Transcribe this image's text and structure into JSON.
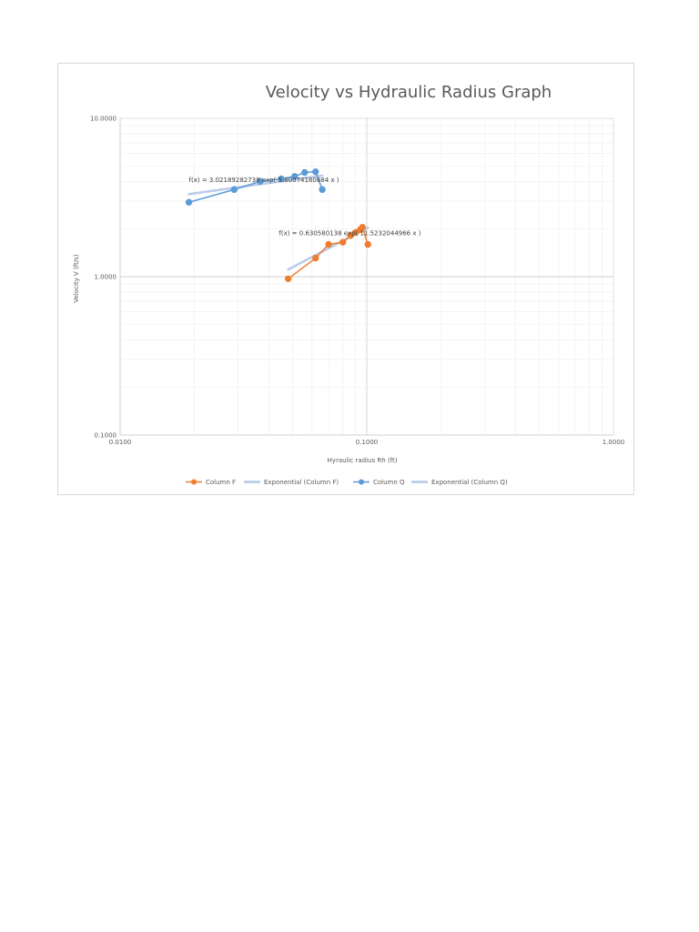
{
  "chart_data": {
    "type": "scatter",
    "title": "Velocity vs Hydraulic Radius Graph",
    "xlabel": "Hyraulic radius  Rh (ft)",
    "ylabel": "Velocity V (ft/s)",
    "xscale": "log",
    "yscale": "log",
    "xlim": [
      0.01,
      1.0
    ],
    "ylim": [
      0.1,
      10.0
    ],
    "x_ticks": [
      "0.0100",
      "0.1000",
      "1.0000"
    ],
    "y_ticks": [
      "10.0000",
      "1.0000",
      "0.1000"
    ],
    "grid": true,
    "legend_position": "bottom",
    "series": [
      {
        "name": "Column F",
        "color": "#ed7d31",
        "mode": "line+markers",
        "x": [
          0.048,
          0.062,
          0.07,
          0.08,
          0.086,
          0.09,
          0.094,
          0.096,
          0.101
        ],
        "y": [
          0.97,
          1.31,
          1.6,
          1.65,
          1.82,
          1.9,
          1.98,
          2.05,
          1.6
        ]
      },
      {
        "name": "Exponential (Column F)",
        "color": "#b4c7e7",
        "mode": "trendline",
        "x": [
          0.048,
          0.101
        ],
        "y": [
          1.11,
          2.04
        ]
      },
      {
        "name": "Column Q",
        "color": "#5b9bd5",
        "mode": "line+markers",
        "x": [
          0.019,
          0.029,
          0.037,
          0.045,
          0.051,
          0.056,
          0.062,
          0.066
        ],
        "y": [
          2.95,
          3.55,
          4.0,
          4.15,
          4.3,
          4.55,
          4.6,
          3.55
        ]
      },
      {
        "name": "Exponential (Column Q)",
        "color": "#b4c7e7",
        "mode": "trendline",
        "x": [
          0.019,
          0.066
        ],
        "y": [
          3.32,
          4.35
        ]
      }
    ],
    "annotations": [
      {
        "text": "f(x) = 3.02189282738 exp( 5.80074180684 x )",
        "x": 0.019,
        "y": 3.95
      },
      {
        "text": "f(x) = 0.630580138 exp( 11.5232044966 x )",
        "x": 0.044,
        "y": 1.82
      }
    ]
  }
}
